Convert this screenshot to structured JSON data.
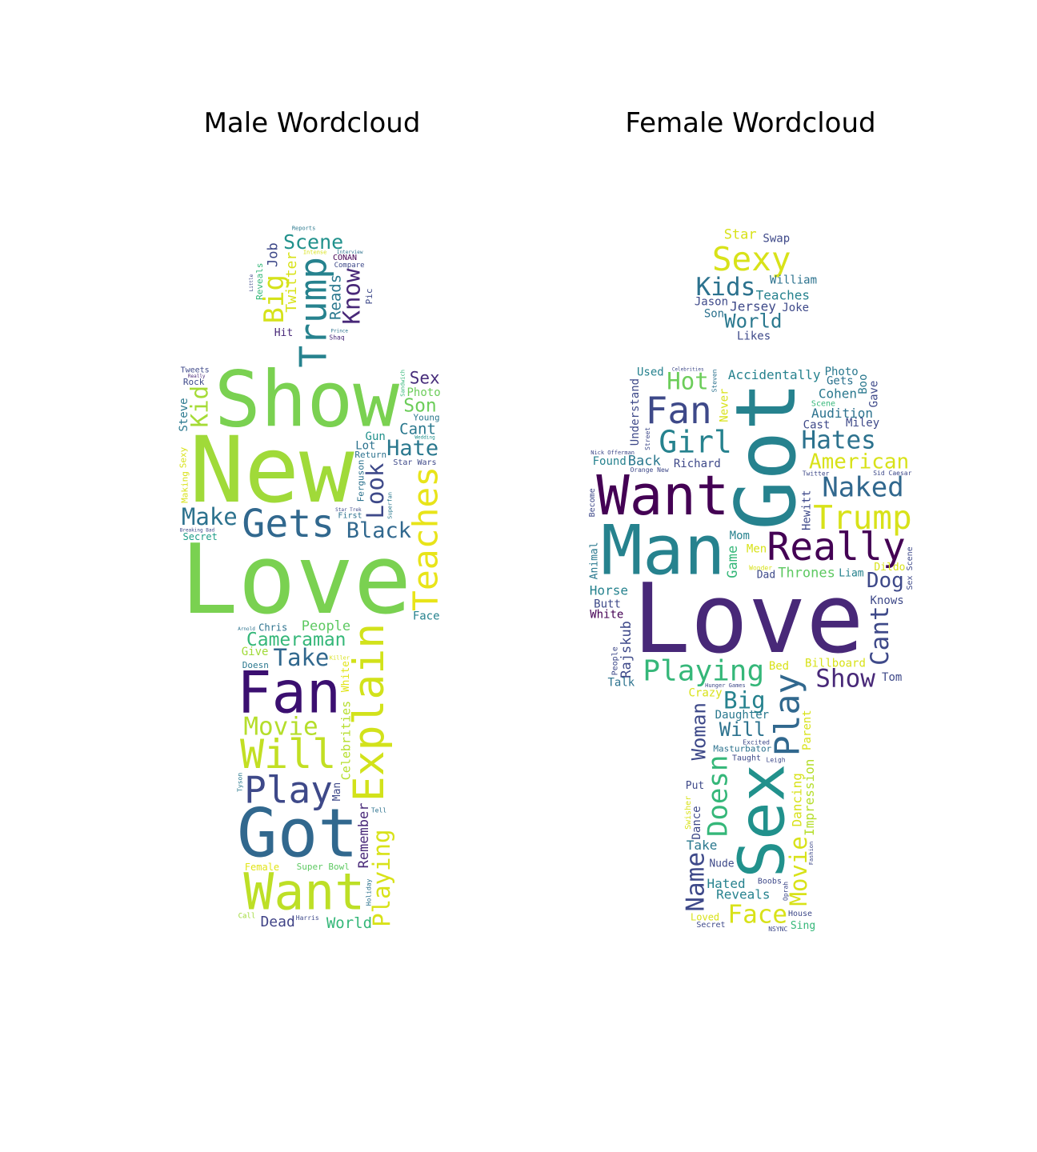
{
  "panels": [
    {
      "id": "male",
      "title": "Male Wordcloud",
      "words": [
        {
          "text": "Love",
          "weight": 1.0,
          "color": "#7ad151"
        },
        {
          "text": "New",
          "weight": 0.95,
          "color": "#a0da39"
        },
        {
          "text": "Show",
          "weight": 0.8,
          "color": "#7ad151"
        },
        {
          "text": "Got",
          "weight": 0.7,
          "color": "#31688e"
        },
        {
          "text": "Explain",
          "weight": 0.68,
          "color": "#d2e21b"
        },
        {
          "text": "Want",
          "weight": 0.66,
          "color": "#bddf26"
        },
        {
          "text": "Fan",
          "weight": 0.6,
          "color": "#3b0f70"
        },
        {
          "text": "Teaches",
          "weight": 0.45,
          "color": "#e8e419"
        },
        {
          "text": "Will",
          "weight": 0.42,
          "color": "#c2df23"
        },
        {
          "text": "Gets",
          "weight": 0.4,
          "color": "#31688e"
        },
        {
          "text": "Trump",
          "weight": 0.38,
          "color": "#26828e"
        },
        {
          "text": "Play",
          "weight": 0.38,
          "color": "#3e4989"
        },
        {
          "text": "Cameraman",
          "weight": 0.3,
          "color": "#35b779"
        },
        {
          "text": "Playing",
          "weight": 0.3,
          "color": "#d8e219"
        },
        {
          "text": "Black",
          "weight": 0.28,
          "color": "#31688e"
        },
        {
          "text": "Hate",
          "weight": 0.28,
          "color": "#2a788e"
        },
        {
          "text": "Big",
          "weight": 0.28,
          "color": "#d5e21a"
        },
        {
          "text": "Movie",
          "weight": 0.26,
          "color": "#b5de2b"
        },
        {
          "text": "Scene",
          "weight": 0.26,
          "color": "#21918c"
        },
        {
          "text": "Celebrities",
          "weight": 0.2,
          "color": "#b5de2b"
        },
        {
          "text": "Look",
          "weight": 0.24,
          "color": "#3e4989"
        },
        {
          "text": "Take",
          "weight": 0.24,
          "color": "#31688e"
        },
        {
          "text": "Make",
          "weight": 0.24,
          "color": "#2c728e"
        },
        {
          "text": "Know",
          "weight": 0.24,
          "color": "#482878"
        },
        {
          "text": "Dead",
          "weight": 0.24,
          "color": "#414487"
        },
        {
          "text": "Son",
          "weight": 0.24,
          "color": "#6ccd5a"
        },
        {
          "text": "Kid",
          "weight": 0.24,
          "color": "#a5db36"
        },
        {
          "text": "People",
          "weight": 0.22,
          "color": "#5ec962"
        },
        {
          "text": "Sex",
          "weight": 0.22,
          "color": "#472d7b"
        },
        {
          "text": "World",
          "weight": 0.2,
          "color": "#35b779"
        },
        {
          "text": "Cant",
          "weight": 0.2,
          "color": "#2a788e"
        },
        {
          "text": "Twitter",
          "weight": 0.18,
          "color": "#d8e219"
        },
        {
          "text": "Female",
          "weight": 0.16,
          "color": "#e1e418"
        },
        {
          "text": "Ferguson",
          "weight": 0.15,
          "color": "#2c728e"
        },
        {
          "text": "Super Bowl",
          "weight": 0.15,
          "color": "#5ec962"
        },
        {
          "text": "Tweets",
          "weight": 0.16,
          "color": "#3e4989"
        },
        {
          "text": "Reads",
          "weight": 0.16,
          "color": "#2a788e"
        },
        {
          "text": "Chris",
          "weight": 0.16,
          "color": "#2c728e"
        },
        {
          "text": "Secret",
          "weight": 0.16,
          "color": "#1f9e89"
        },
        {
          "text": "Compare",
          "weight": 0.15,
          "color": "#3e4989"
        },
        {
          "text": "Steve",
          "weight": 0.15,
          "color": "#2a788e"
        },
        {
          "text": "Face",
          "weight": 0.15,
          "color": "#26828e"
        },
        {
          "text": "Rock",
          "weight": 0.15,
          "color": "#3e4989"
        },
        {
          "text": "Remember",
          "weight": 0.14,
          "color": "#482878"
        },
        {
          "text": "Photo",
          "weight": 0.14,
          "color": "#6ccd5a"
        },
        {
          "text": "Give",
          "weight": 0.14,
          "color": "#a0da39"
        },
        {
          "text": "Making",
          "weight": 0.14,
          "color": "#d8e219"
        },
        {
          "text": "Return",
          "weight": 0.14,
          "color": "#2c728e"
        },
        {
          "text": "Young",
          "weight": 0.14,
          "color": "#2a788e"
        },
        {
          "text": "Job",
          "weight": 0.14,
          "color": "#3e4989"
        },
        {
          "text": "CONAN",
          "weight": 0.13,
          "color": "#440154"
        },
        {
          "text": "Lot",
          "weight": 0.14,
          "color": "#2c728e"
        },
        {
          "text": "White",
          "weight": 0.13,
          "color": "#e1e418"
        },
        {
          "text": "Doesn",
          "weight": 0.14,
          "color": "#2a788e"
        },
        {
          "text": "Reveals",
          "weight": 0.14,
          "color": "#35b779"
        },
        {
          "text": "Reports",
          "weight": 0.14,
          "color": "#2a788e"
        },
        {
          "text": "Star Wars",
          "weight": 0.13,
          "color": "#3e4989"
        },
        {
          "text": "First",
          "weight": 0.13,
          "color": "#2c728e"
        },
        {
          "text": "Man",
          "weight": 0.13,
          "color": "#3e4989"
        },
        {
          "text": "Hit",
          "weight": 0.13,
          "color": "#482878"
        },
        {
          "text": "Tell",
          "weight": 0.13,
          "color": "#2c728e"
        },
        {
          "text": "Sexy",
          "weight": 0.12,
          "color": "#d8e219"
        },
        {
          "text": "Gun",
          "weight": 0.12,
          "color": "#21918c"
        },
        {
          "text": "Call",
          "weight": 0.12,
          "color": "#a0da39"
        },
        {
          "text": "Pic",
          "weight": 0.12,
          "color": "#3e4989"
        },
        {
          "text": "Star Trek",
          "weight": 0.08,
          "color": "#3e4989"
        },
        {
          "text": "Arnold",
          "weight": 0.08,
          "color": "#2c728e"
        },
        {
          "text": "Tyson",
          "weight": 0.07,
          "color": "#2a788e"
        },
        {
          "text": "Harris",
          "weight": 0.07,
          "color": "#3e4989"
        },
        {
          "text": "Shaq",
          "weight": 0.07,
          "color": "#482878"
        },
        {
          "text": "Holiday",
          "weight": 0.07,
          "color": "#2c728e"
        },
        {
          "text": "Intense",
          "weight": 0.06,
          "color": "#d8e219"
        },
        {
          "text": "Sandwich",
          "weight": 0.06,
          "color": "#35b779"
        },
        {
          "text": "Prince",
          "weight": 0.06,
          "color": "#2c728e"
        },
        {
          "text": "Wedding",
          "weight": 0.06,
          "color": "#21918c"
        },
        {
          "text": "Breaking Bad",
          "weight": 0.07,
          "color": "#3e4989"
        },
        {
          "text": "Interview",
          "weight": 0.07,
          "color": "#2c728e"
        },
        {
          "text": "Little",
          "weight": 0.07,
          "color": "#3e4989"
        },
        {
          "text": "Really",
          "weight": 0.07,
          "color": "#482878"
        },
        {
          "text": "Superfan",
          "weight": 0.06,
          "color": "#2a788e"
        },
        {
          "text": "Killer",
          "weight": 0.06,
          "color": "#d8e219"
        }
      ]
    },
    {
      "id": "female",
      "title": "Female Wordcloud",
      "words": [
        {
          "text": "Love",
          "weight": 1.0,
          "color": "#482878"
        },
        {
          "text": "Got",
          "weight": 0.86,
          "color": "#26828e"
        },
        {
          "text": "Want",
          "weight": 0.72,
          "color": "#440154"
        },
        {
          "text": "Man",
          "weight": 0.72,
          "color": "#26828e"
        },
        {
          "text": "Sex",
          "weight": 0.66,
          "color": "#21918c"
        },
        {
          "text": "Really",
          "weight": 0.4,
          "color": "#440154"
        },
        {
          "text": "Fan",
          "weight": 0.38,
          "color": "#3e4989"
        },
        {
          "text": "Play",
          "weight": 0.36,
          "color": "#31688e"
        },
        {
          "text": "Sexy",
          "weight": 0.34,
          "color": "#d8e219"
        },
        {
          "text": "Trump",
          "weight": 0.34,
          "color": "#d8e219"
        },
        {
          "text": "Girl",
          "weight": 0.32,
          "color": "#26828e"
        },
        {
          "text": "Playing",
          "weight": 0.3,
          "color": "#35b779"
        },
        {
          "text": "Naked",
          "weight": 0.28,
          "color": "#31688e"
        },
        {
          "text": "Doesn",
          "weight": 0.28,
          "color": "#35b779"
        },
        {
          "text": "Hates",
          "weight": 0.26,
          "color": "#2c728e"
        },
        {
          "text": "Show",
          "weight": 0.26,
          "color": "#482878"
        },
        {
          "text": "Cant",
          "weight": 0.26,
          "color": "#3e4989"
        },
        {
          "text": "Kids",
          "weight": 0.26,
          "color": "#2c728e"
        },
        {
          "text": "Face",
          "weight": 0.26,
          "color": "#d8e219"
        },
        {
          "text": "Name",
          "weight": 0.26,
          "color": "#3e4989"
        },
        {
          "text": "Big",
          "weight": 0.24,
          "color": "#26828e"
        },
        {
          "text": "Hot",
          "weight": 0.24,
          "color": "#6ccd5a"
        },
        {
          "text": "Movie",
          "weight": 0.24,
          "color": "#d8e219"
        },
        {
          "text": "American",
          "weight": 0.22,
          "color": "#d8e219"
        },
        {
          "text": "Dog",
          "weight": 0.22,
          "color": "#3e4989"
        },
        {
          "text": "Woman",
          "weight": 0.2,
          "color": "#3e4989"
        },
        {
          "text": "World",
          "weight": 0.2,
          "color": "#2a788e"
        },
        {
          "text": "Will",
          "weight": 0.2,
          "color": "#2c728e"
        },
        {
          "text": "Accidentally",
          "weight": 0.13,
          "color": "#26828e"
        },
        {
          "text": "Impression",
          "weight": 0.13,
          "color": "#b5de2b"
        },
        {
          "text": "Game",
          "weight": 0.14,
          "color": "#35b779"
        },
        {
          "text": "Thrones",
          "weight": 0.14,
          "color": "#5ec962"
        },
        {
          "text": "Star",
          "weight": 0.14,
          "color": "#d8e219"
        },
        {
          "text": "Horse",
          "weight": 0.13,
          "color": "#26828e"
        },
        {
          "text": "Cohen",
          "weight": 0.13,
          "color": "#2a788e"
        },
        {
          "text": "Crazy",
          "weight": 0.12,
          "color": "#d8e219"
        },
        {
          "text": "Dancing",
          "weight": 0.13,
          "color": "#d8e219"
        },
        {
          "text": "Billboard",
          "weight": 0.12,
          "color": "#d8e219"
        },
        {
          "text": "Understand",
          "weight": 0.12,
          "color": "#3e4989"
        },
        {
          "text": "Rajskub",
          "weight": 0.14,
          "color": "#3e4989"
        },
        {
          "text": "Back",
          "weight": 0.14,
          "color": "#2a788e"
        },
        {
          "text": "Audition",
          "weight": 0.13,
          "color": "#2c728e"
        },
        {
          "text": "Teaches",
          "weight": 0.13,
          "color": "#26828e"
        },
        {
          "text": "Masturbator",
          "weight": 0.12,
          "color": "#2c728e"
        },
        {
          "text": "Reveals",
          "weight": 0.13,
          "color": "#26828e"
        },
        {
          "text": "Jason",
          "weight": 0.12,
          "color": "#3e4989"
        },
        {
          "text": "Take",
          "weight": 0.13,
          "color": "#2a788e"
        },
        {
          "text": "Hated",
          "weight": 0.13,
          "color": "#26828e"
        },
        {
          "text": "Dance",
          "weight": 0.12,
          "color": "#3e4989"
        },
        {
          "text": "Jersey",
          "weight": 0.13,
          "color": "#3e4989"
        },
        {
          "text": "William",
          "weight": 0.12,
          "color": "#2c728e"
        },
        {
          "text": "Daughter",
          "weight": 0.12,
          "color": "#2a788e"
        },
        {
          "text": "Hewitt",
          "weight": 0.12,
          "color": "#3e4989"
        },
        {
          "text": "Knows",
          "weight": 0.12,
          "color": "#3e4989"
        },
        {
          "text": "Cast",
          "weight": 0.12,
          "color": "#3e4989"
        },
        {
          "text": "Butt",
          "weight": 0.12,
          "color": "#3e4989"
        },
        {
          "text": "Swap",
          "weight": 0.12,
          "color": "#3e4989"
        },
        {
          "text": "Richard",
          "weight": 0.12,
          "color": "#3e4989"
        },
        {
          "text": "Parent",
          "weight": 0.12,
          "color": "#d8e219"
        },
        {
          "text": "Found",
          "weight": 0.12,
          "color": "#26828e"
        },
        {
          "text": "Mom",
          "weight": 0.12,
          "color": "#26828e"
        },
        {
          "text": "Boo",
          "weight": 0.12,
          "color": "#2a788e"
        },
        {
          "text": "Gets",
          "weight": 0.12,
          "color": "#2c728e"
        },
        {
          "text": "Photo",
          "weight": 0.12,
          "color": "#2a788e"
        },
        {
          "text": "Miley",
          "weight": 0.12,
          "color": "#3e4989"
        },
        {
          "text": "Men",
          "weight": 0.12,
          "color": "#d8e219"
        },
        {
          "text": "Likes",
          "weight": 0.12,
          "color": "#3e4989"
        },
        {
          "text": "Tom",
          "weight": 0.12,
          "color": "#3e4989"
        },
        {
          "text": "Talk",
          "weight": 0.12,
          "color": "#2c728e"
        },
        {
          "text": "Bed",
          "weight": 0.12,
          "color": "#d8e219"
        },
        {
          "text": "Never",
          "weight": 0.12,
          "color": "#d8e219"
        },
        {
          "text": "Used",
          "weight": 0.12,
          "color": "#26828e"
        },
        {
          "text": "White",
          "weight": 0.12,
          "color": "#440154"
        },
        {
          "text": "Animal",
          "weight": 0.11,
          "color": "#2a788e"
        },
        {
          "text": "Gave",
          "weight": 0.12,
          "color": "#3e4989"
        },
        {
          "text": "Scene",
          "weight": 0.11,
          "color": "#35b779"
        },
        {
          "text": "Liam",
          "weight": 0.11,
          "color": "#26828e"
        },
        {
          "text": "Sex Scene",
          "weight": 0.11,
          "color": "#3e4989"
        },
        {
          "text": "Secret",
          "weight": 0.11,
          "color": "#3e4989"
        },
        {
          "text": "Taught",
          "weight": 0.11,
          "color": "#3e4989"
        },
        {
          "text": "Nude",
          "weight": 0.11,
          "color": "#3e4989"
        },
        {
          "text": "Dildo",
          "weight": 0.11,
          "color": "#d8e219"
        },
        {
          "text": "Put",
          "weight": 0.11,
          "color": "#3e4989"
        },
        {
          "text": "Hunger Games",
          "weight": 0.09,
          "color": "#3e4989"
        },
        {
          "text": "Nick Offerman",
          "weight": 0.09,
          "color": "#3e4989"
        },
        {
          "text": "Joke",
          "weight": 0.12,
          "color": "#3e4989"
        },
        {
          "text": "Son",
          "weight": 0.12,
          "color": "#2c728e"
        },
        {
          "text": "Become",
          "weight": 0.11,
          "color": "#3e4989"
        },
        {
          "text": "Dad",
          "weight": 0.11,
          "color": "#3e4989"
        },
        {
          "text": "Boobs",
          "weight": 0.11,
          "color": "#3e4989"
        },
        {
          "text": "People",
          "weight": 0.11,
          "color": "#3e4989"
        },
        {
          "text": "Sing",
          "weight": 0.11,
          "color": "#35b779"
        },
        {
          "text": "Steven",
          "weight": 0.07,
          "color": "#2c728e"
        },
        {
          "text": "House",
          "weight": 0.11,
          "color": "#3e4989"
        },
        {
          "text": "Swisher",
          "weight": 0.1,
          "color": "#d8e219"
        },
        {
          "text": "Loved",
          "weight": 0.1,
          "color": "#d8e219"
        },
        {
          "text": "Orange New",
          "weight": 0.08,
          "color": "#3e4989"
        },
        {
          "text": "Sid Caesar",
          "weight": 0.08,
          "color": "#3e4989"
        },
        {
          "text": "Excited",
          "weight": 0.07,
          "color": "#3e4989"
        },
        {
          "text": "NSYNC",
          "weight": 0.07,
          "color": "#3e4989"
        },
        {
          "text": "Oprah",
          "weight": 0.07,
          "color": "#3e4989"
        },
        {
          "text": "Fashion",
          "weight": 0.06,
          "color": "#3e4989"
        },
        {
          "text": "Leigh",
          "weight": 0.07,
          "color": "#3e4989"
        },
        {
          "text": "Celebrities",
          "weight": 0.07,
          "color": "#3e4989"
        },
        {
          "text": "Street",
          "weight": 0.07,
          "color": "#3e4989"
        },
        {
          "text": "Twitter",
          "weight": 0.07,
          "color": "#3e4989"
        },
        {
          "text": "Wonder",
          "weight": 0.07,
          "color": "#d8e219"
        }
      ]
    }
  ]
}
